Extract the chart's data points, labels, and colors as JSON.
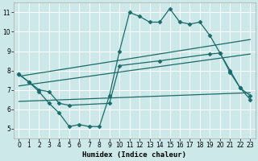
{
  "xlabel": "Humidex (Indice chaleur)",
  "background_color": "#cce8e8",
  "grid_color": "#ffffff",
  "line_color": "#1a6b6b",
  "xlim": [
    -0.5,
    23.5
  ],
  "ylim": [
    4.5,
    11.5
  ],
  "yticks": [
    5,
    6,
    7,
    8,
    9,
    10,
    11
  ],
  "xticks": [
    0,
    1,
    2,
    3,
    4,
    5,
    6,
    7,
    8,
    9,
    10,
    11,
    12,
    13,
    14,
    15,
    16,
    17,
    18,
    19,
    20,
    21,
    22,
    23
  ],
  "series1_x": [
    0,
    1,
    2,
    3,
    4,
    5,
    6,
    7,
    8,
    9,
    10,
    11,
    12,
    13,
    14,
    15,
    16,
    17,
    18,
    19,
    20,
    21,
    22,
    23
  ],
  "series1_y": [
    7.8,
    7.4,
    6.9,
    6.3,
    5.8,
    5.1,
    5.2,
    5.1,
    5.1,
    6.7,
    9.0,
    11.0,
    10.8,
    10.5,
    10.5,
    11.2,
    10.5,
    10.4,
    10.5,
    9.8,
    8.9,
    8.0,
    7.1,
    6.7
  ],
  "series2_x": [
    0,
    1,
    2,
    3,
    4,
    5,
    9,
    10,
    14,
    19,
    20,
    21,
    22,
    23
  ],
  "series2_y": [
    7.8,
    7.4,
    7.0,
    6.9,
    6.3,
    6.2,
    6.3,
    8.25,
    8.5,
    8.85,
    8.9,
    7.9,
    7.1,
    6.5
  ],
  "series3_x": [
    0,
    23
  ],
  "series3_y": [
    7.7,
    9.6
  ],
  "series4_x": [
    0,
    23
  ],
  "series4_y": [
    7.2,
    8.85
  ],
  "series5_x": [
    0,
    23
  ],
  "series5_y": [
    6.4,
    6.85
  ]
}
